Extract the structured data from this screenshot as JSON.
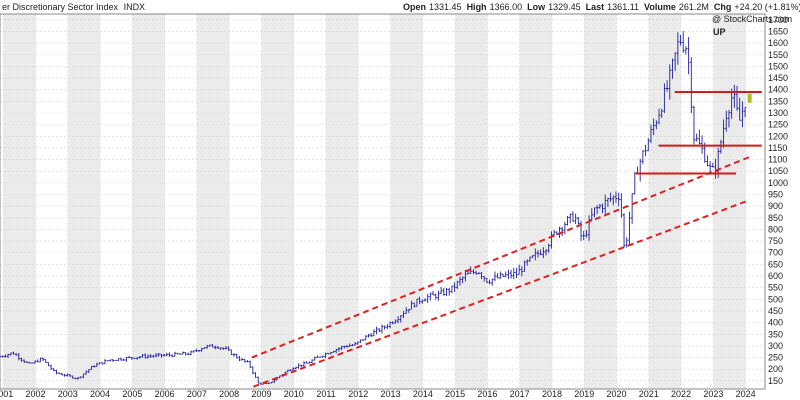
{
  "header": {
    "title": "er Discretionary Sector Index",
    "exchange": "INDX",
    "watermark": "@ StockCharts.com",
    "stats": [
      {
        "label": "Open",
        "value": "1331.45"
      },
      {
        "label": "High",
        "value": "1366.00"
      },
      {
        "label": "Low",
        "value": "1329.45"
      },
      {
        "label": "Last",
        "value": "1361.11"
      },
      {
        "label": "Volume",
        "value": "261.2M"
      },
      {
        "label": "Chg",
        "value": "+24.20 (+1.81%)"
      }
    ]
  },
  "chart_data": {
    "type": "ohlc",
    "signal": "UP",
    "x_unit": "year",
    "xlim": [
      2000.9,
      2024.6
    ],
    "ylim": [
      115,
      1725
    ],
    "y_ticks": [
      150,
      200,
      250,
      300,
      350,
      400,
      450,
      500,
      550,
      600,
      650,
      700,
      750,
      800,
      850,
      900,
      950,
      1000,
      1050,
      1100,
      1150,
      1200,
      1250,
      1300,
      1350,
      1400,
      1450,
      1500,
      1550,
      1600,
      1650,
      1700
    ],
    "x_ticks": [
      "2001",
      "2002",
      "2003",
      "2004",
      "2005",
      "2006",
      "2007",
      "2008",
      "2009",
      "2010",
      "2011",
      "2012",
      "2013",
      "2014",
      "2015",
      "2016",
      "2017",
      "2018",
      "2019",
      "2020",
      "2021",
      "2022",
      "2023",
      "2024"
    ],
    "price_anchors": [
      [
        2000.9,
        255
      ],
      [
        2001.3,
        270
      ],
      [
        2001.8,
        220
      ],
      [
        2002.2,
        245
      ],
      [
        2002.6,
        185
      ],
      [
        2002.9,
        175
      ],
      [
        2003.3,
        160
      ],
      [
        2003.8,
        215
      ],
      [
        2004.3,
        240
      ],
      [
        2004.7,
        245
      ],
      [
        2005.3,
        255
      ],
      [
        2005.8,
        258
      ],
      [
        2006.3,
        262
      ],
      [
        2006.8,
        268
      ],
      [
        2007.2,
        295
      ],
      [
        2007.6,
        300
      ],
      [
        2007.9,
        285
      ],
      [
        2008.3,
        245
      ],
      [
        2008.6,
        225
      ],
      [
        2008.9,
        140
      ],
      [
        2009.2,
        135
      ],
      [
        2009.6,
        175
      ],
      [
        2010.0,
        210
      ],
      [
        2010.4,
        225
      ],
      [
        2010.8,
        255
      ],
      [
        2011.2,
        280
      ],
      [
        2011.6,
        300
      ],
      [
        2011.9,
        305
      ],
      [
        2012.3,
        345
      ],
      [
        2012.8,
        380
      ],
      [
        2013.2,
        420
      ],
      [
        2013.6,
        470
      ],
      [
        2014.0,
        505
      ],
      [
        2014.5,
        520
      ],
      [
        2014.9,
        545
      ],
      [
        2015.3,
        600
      ],
      [
        2015.7,
        625
      ],
      [
        2016.0,
        580
      ],
      [
        2016.5,
        600
      ],
      [
        2016.9,
        610
      ],
      [
        2017.3,
        665
      ],
      [
        2017.8,
        725
      ],
      [
        2018.2,
        805
      ],
      [
        2018.7,
        860
      ],
      [
        2018.95,
        750
      ],
      [
        2019.3,
        880
      ],
      [
        2019.8,
        930
      ],
      [
        2020.1,
        950
      ],
      [
        2020.25,
        700
      ],
      [
        2020.6,
        1050
      ],
      [
        2020.9,
        1150
      ],
      [
        2021.3,
        1300
      ],
      [
        2021.6,
        1420
      ],
      [
        2021.95,
        1620
      ],
      [
        2022.2,
        1580
      ],
      [
        2022.4,
        1200
      ],
      [
        2022.7,
        1130
      ],
      [
        2022.95,
        1040
      ],
      [
        2023.1,
        1080
      ],
      [
        2023.4,
        1300
      ],
      [
        2023.6,
        1380
      ],
      [
        2023.8,
        1260
      ],
      [
        2024.0,
        1361
      ]
    ],
    "trendlines": [
      {
        "style": "dashed",
        "color": "#e02020",
        "points": [
          [
            2008.7,
            250
          ],
          [
            2024.1,
            1110
          ]
        ]
      },
      {
        "style": "dashed",
        "color": "#e02020",
        "points": [
          [
            2008.75,
            125
          ],
          [
            2024.0,
            920
          ]
        ]
      },
      {
        "style": "solid",
        "color": "#d81818",
        "points": [
          [
            2021.8,
            1390
          ],
          [
            2024.5,
            1390
          ]
        ]
      },
      {
        "style": "solid",
        "color": "#d81818",
        "points": [
          [
            2021.3,
            1160
          ],
          [
            2024.5,
            1160
          ]
        ]
      },
      {
        "style": "solid",
        "color": "#d81818",
        "points": [
          [
            2020.6,
            1040
          ],
          [
            2023.7,
            1040
          ]
        ]
      }
    ],
    "colors": {
      "bars": "#20209a",
      "band": "#ebebeb",
      "grid": "#d4d4d4",
      "signal": "#2a8a2a",
      "last_marker": "#b8b820"
    }
  }
}
